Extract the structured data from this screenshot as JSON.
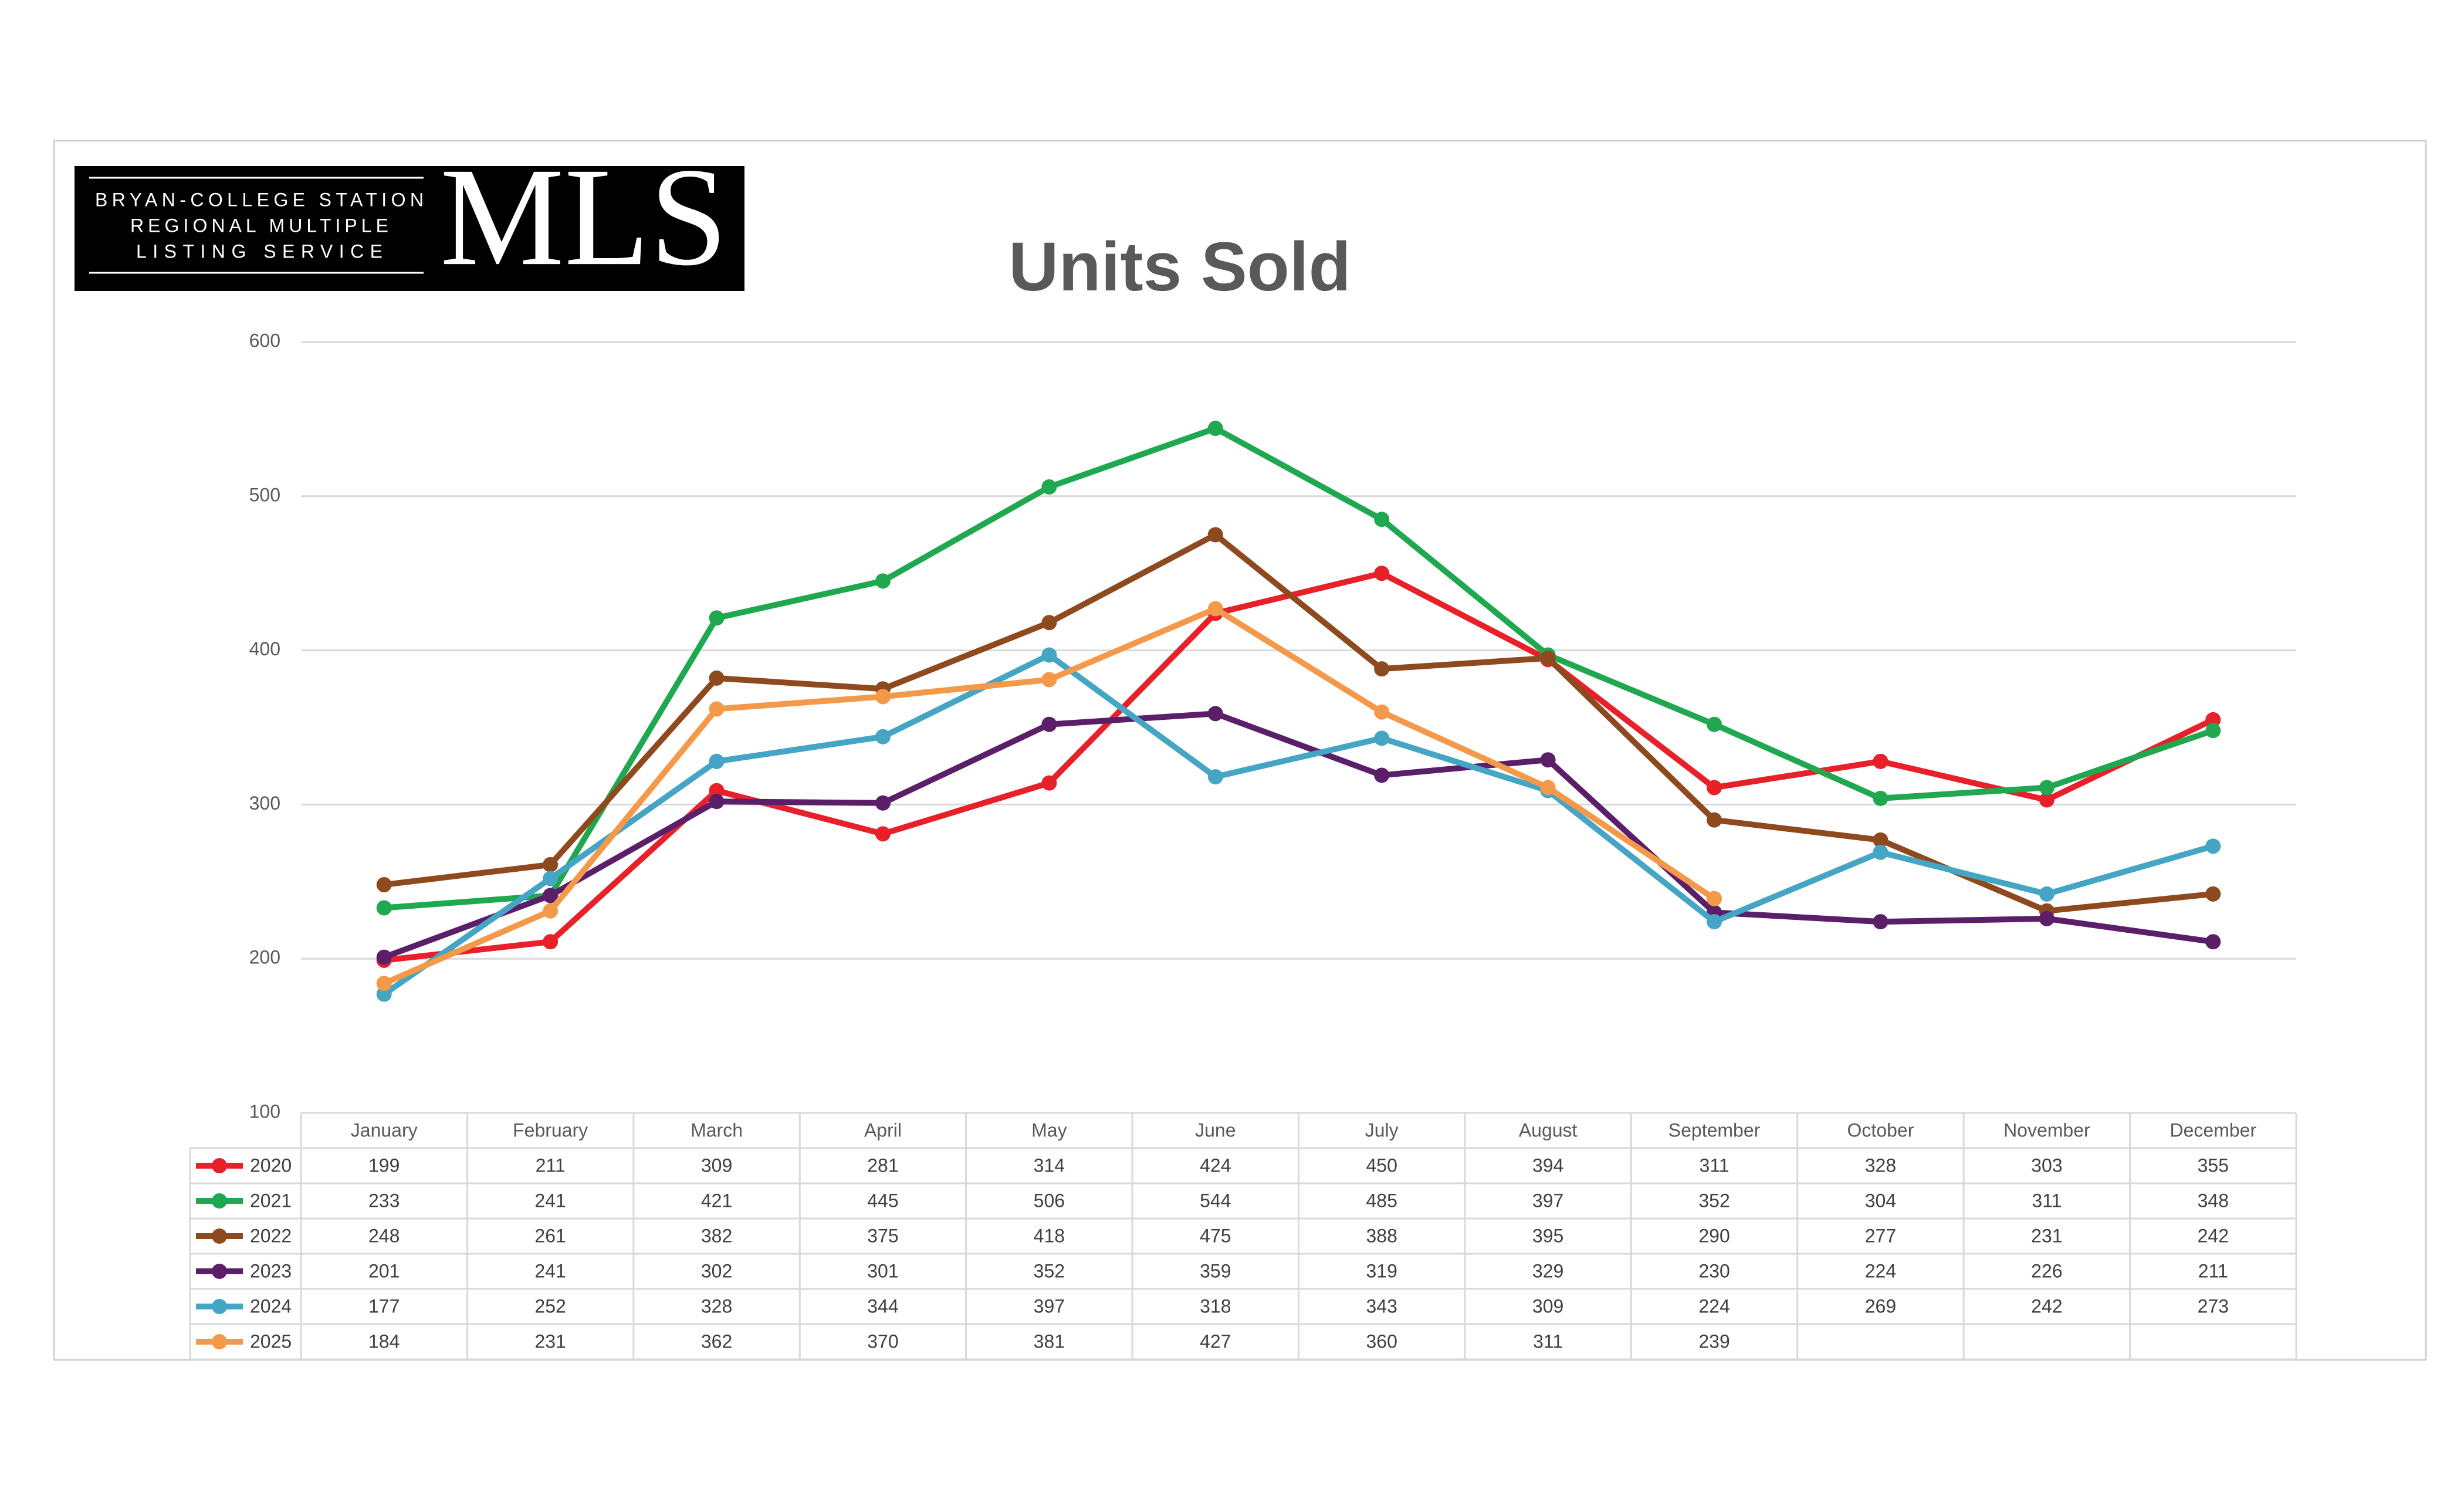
{
  "logo": {
    "lines": [
      "BRYAN-COLLEGE STATION",
      "REGIONAL MULTIPLE",
      "LISTING SERVICE"
    ],
    "mark": "MLS"
  },
  "chart_data": {
    "type": "line",
    "title": "Units Sold",
    "categories": [
      "January",
      "February",
      "March",
      "April",
      "May",
      "June",
      "July",
      "August",
      "September",
      "October",
      "November",
      "December"
    ],
    "series": [
      {
        "name": "2020",
        "color": "#e8202a",
        "values": [
          199,
          211,
          309,
          281,
          314,
          424,
          450,
          394,
          311,
          328,
          303,
          355
        ]
      },
      {
        "name": "2021",
        "color": "#1fa84f",
        "values": [
          233,
          241,
          421,
          445,
          506,
          544,
          485,
          397,
          352,
          304,
          311,
          348
        ]
      },
      {
        "name": "2022",
        "color": "#8e4a1e",
        "values": [
          248,
          261,
          382,
          375,
          418,
          475,
          388,
          395,
          290,
          277,
          231,
          242
        ]
      },
      {
        "name": "2023",
        "color": "#5b1f69",
        "values": [
          201,
          241,
          302,
          301,
          352,
          359,
          319,
          329,
          230,
          224,
          226,
          211
        ]
      },
      {
        "name": "2024",
        "color": "#45a5c4",
        "values": [
          177,
          252,
          328,
          344,
          397,
          318,
          343,
          309,
          224,
          269,
          242,
          273
        ]
      },
      {
        "name": "2025",
        "color": "#f4994a",
        "values": [
          184,
          231,
          362,
          370,
          381,
          427,
          360,
          311,
          239,
          null,
          null,
          null
        ]
      }
    ],
    "ylim": [
      100,
      600
    ],
    "yticks": [
      100,
      200,
      300,
      400,
      500,
      600
    ],
    "grid": true
  }
}
